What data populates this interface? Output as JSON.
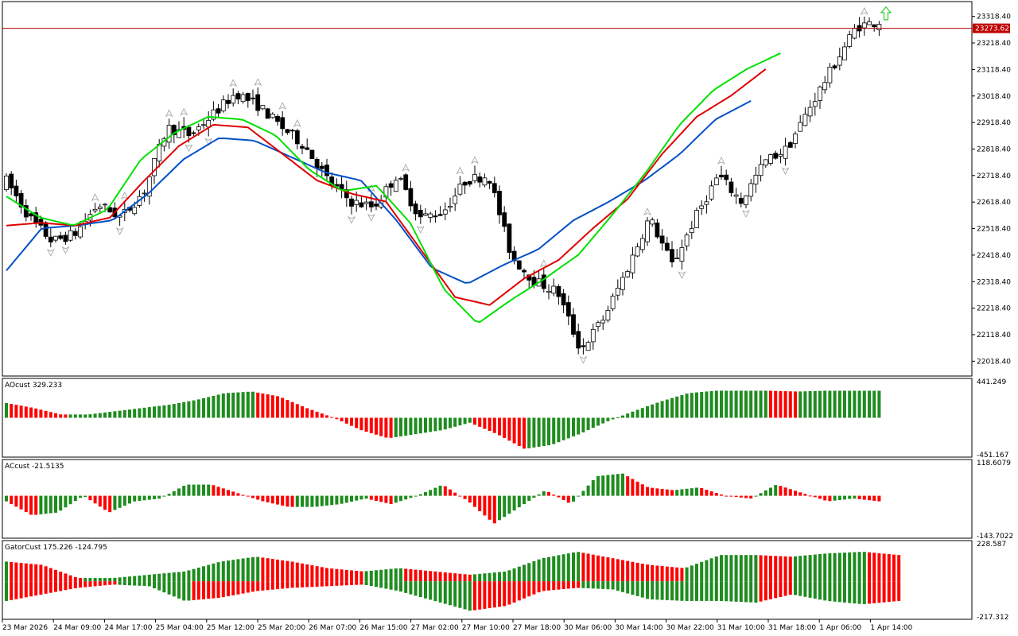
{
  "chart_data": [
    {
      "type": "candlestick",
      "panel": "main",
      "ylim": [
        21968.4,
        23368.4
      ],
      "y_ticks": [
        "23318.40",
        "23218.40",
        "23118.40",
        "23018.40",
        "22918.40",
        "22818.40",
        "22718.40",
        "22618.40",
        "22518.40",
        "22418.40",
        "22318.40",
        "22218.40",
        "22118.40",
        "22018.40"
      ],
      "current_price": "23273.62",
      "current_price_value": 23273.62,
      "x_labels": [
        "23 Mar 2026",
        "24 Mar 09:00",
        "24 Mar 17:00",
        "25 Mar 04:00",
        "25 Mar 12:00",
        "25 Mar 20:00",
        "26 Mar 07:00",
        "26 Mar 15:00",
        "27 Mar 02:00",
        "27 Mar 10:00",
        "27 Mar 18:00",
        "30 Mar 06:00",
        "30 Mar 14:00",
        "30 Mar 22:00",
        "31 Mar 10:00",
        "31 Mar 18:00",
        "1 Apr 06:00",
        "1 Apr 14:00"
      ],
      "ohlc_anchors": [
        22700,
        22560,
        22470,
        22500,
        22610,
        22560,
        22660,
        22900,
        22870,
        22950,
        23030,
        22980,
        22900,
        22830,
        22700,
        22620,
        22600,
        22720,
        22560,
        22580,
        22700,
        22720,
        22410,
        22320,
        22280,
        22060,
        22180,
        22360,
        22560,
        22380,
        22560,
        22720,
        22620,
        22770,
        22820,
        22980,
        23130,
        23280,
        23300
      ],
      "alligator": {
        "lips": [
          22640,
          22560,
          22530,
          22590,
          22780,
          22880,
          22940,
          22930,
          22870,
          22740,
          22660,
          22680,
          22540,
          22290,
          22160,
          22250,
          22330,
          22420,
          22570,
          22730,
          22910,
          23040,
          23120,
          23180
        ],
        "teeth": [
          22530,
          22540,
          22530,
          22560,
          22700,
          22830,
          22910,
          22900,
          22800,
          22700,
          22650,
          22620,
          22440,
          22260,
          22230,
          22330,
          22400,
          22520,
          22630,
          22800,
          22940,
          23020,
          23120
        ],
        "jaw": [
          22360,
          22520,
          22530,
          22550,
          22650,
          22780,
          22860,
          22850,
          22790,
          22730,
          22700,
          22550,
          22370,
          22310,
          22380,
          22440,
          22550,
          22620,
          22700,
          22800,
          22930,
          23000
        ]
      },
      "fractals": "up and down fractal markers above/below swing candles",
      "signal_arrow": "up-arrow"
    },
    {
      "type": "histogram",
      "panel": "AOcust",
      "title": "AOcust",
      "value": "329.233",
      "ylim": [
        -451.167,
        441.249
      ],
      "y_ticks": [
        "441.249",
        "-451.167"
      ],
      "anchors": [
        180,
        120,
        40,
        40,
        80,
        120,
        160,
        220,
        300,
        320,
        260,
        120,
        0,
        -150,
        -250,
        -200,
        -150,
        -60,
        -200,
        -380,
        -330,
        -200,
        -50,
        80,
        200,
        300,
        330,
        330,
        330,
        320,
        330,
        330,
        330
      ]
    },
    {
      "type": "histogram",
      "panel": "ACcust",
      "title": "ACcust",
      "value": "-21.5135",
      "ylim": [
        -143.7022,
        118.6079
      ],
      "y_ticks": [
        "118.6079",
        "-143.7022"
      ],
      "anchors": [
        -20,
        -70,
        -60,
        0,
        -60,
        -20,
        -10,
        40,
        40,
        10,
        -20,
        -40,
        -40,
        -30,
        -10,
        -30,
        0,
        40,
        -20,
        -100,
        -40,
        20,
        -30,
        70,
        80,
        30,
        20,
        30,
        0,
        -10,
        40,
        10,
        -20,
        -10,
        -20
      ]
    },
    {
      "type": "histogram",
      "panel": "GatorCust",
      "title": "GatorCust",
      "values_shown": "175.226 -124.795",
      "ylim": [
        -217.312,
        228.587
      ],
      "y_ticks": [
        "228.587",
        "-217.312"
      ],
      "upper_anchors": [
        120,
        100,
        20,
        20,
        40,
        60,
        120,
        150,
        120,
        80,
        60,
        80,
        60,
        40,
        60,
        140,
        180,
        140,
        100,
        80,
        160,
        160,
        150,
        170,
        180,
        160
      ],
      "lower_anchors": [
        -120,
        -80,
        -40,
        -20,
        -30,
        -120,
        -100,
        -60,
        -40,
        -30,
        -20,
        -60,
        -120,
        -180,
        -150,
        -60,
        -40,
        -50,
        -110,
        -120,
        -120,
        -130,
        -80,
        -120,
        -140,
        -120
      ]
    }
  ],
  "colors": {
    "bull_bar": "#ffffff",
    "bear_bar": "#000000",
    "lips": "#00e000",
    "teeth": "#e00000",
    "jaw": "#0050c8",
    "hist_up": "#1e8c1e",
    "hist_down": "#ff0000",
    "price_line": "#b40000",
    "fractal": "#a0a0a0",
    "signal_arrow": "#40d040"
  }
}
